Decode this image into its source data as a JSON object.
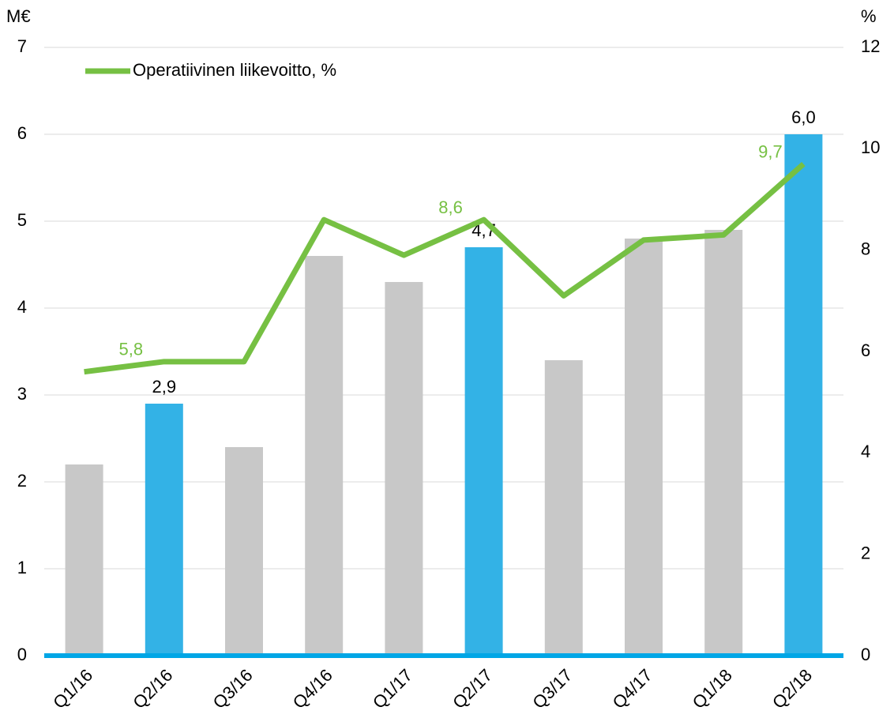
{
  "chart_data": {
    "type": "combo",
    "y_label": "M€",
    "y2_label": "%",
    "categories": [
      "Q1/16",
      "Q2/16",
      "Q3/16",
      "Q4/16",
      "Q1/17",
      "Q2/17",
      "Q3/17",
      "Q4/17",
      "Q1/18",
      "Q2/18"
    ],
    "series": [
      {
        "type": "bar",
        "values": [
          2.2,
          2.9,
          2.4,
          4.6,
          4.3,
          4.7,
          3.4,
          4.8,
          4.9,
          6.0
        ],
        "value_labels": [
          null,
          "2,9",
          null,
          null,
          null,
          "4,7",
          null,
          null,
          null,
          "6,0"
        ],
        "colors": [
          "#c8c8c8",
          "#33b2e6",
          "#c8c8c8",
          "#c8c8c8",
          "#c8c8c8",
          "#33b2e6",
          "#c8c8c8",
          "#c8c8c8",
          "#c8c8c8",
          "#33b2e6"
        ]
      },
      {
        "type": "line",
        "name": "Operatiivinen liikevoitto, %",
        "axis": "y2",
        "color": "#76c043",
        "values": [
          5.6,
          5.8,
          5.8,
          8.6,
          7.9,
          8.6,
          7.1,
          8.2,
          8.3,
          9.7
        ],
        "value_labels": [
          null,
          "5,8",
          null,
          null,
          null,
          "8,6",
          null,
          null,
          null,
          "9,7"
        ]
      }
    ],
    "ylim": [
      0,
      7
    ],
    "yticks": [
      0,
      1,
      2,
      3,
      4,
      5,
      6,
      7
    ],
    "y2lim": [
      0,
      12
    ],
    "y2ticks": [
      0,
      2,
      4,
      6,
      8,
      10,
      12
    ],
    "grid": true,
    "legend": "upper left",
    "axis_color": "#00a6e6"
  }
}
